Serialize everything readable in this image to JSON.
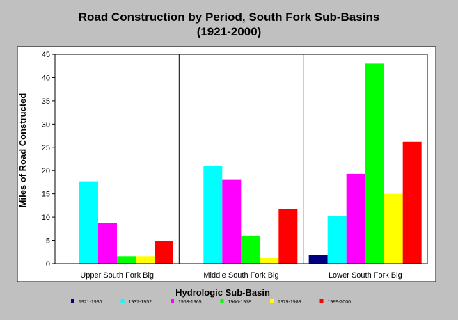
{
  "chart_data": {
    "type": "bar",
    "title_line1": "Road Construction by Period, South Fork Sub-Basins",
    "title_line2": "(1921-2000)",
    "xlabel": "Hydrologic Sub-Basin",
    "ylabel": "Miles of Road Constructed",
    "ylim": [
      0,
      45
    ],
    "yticks": [
      0,
      5,
      10,
      15,
      20,
      25,
      30,
      35,
      40,
      45
    ],
    "grid": false,
    "legend_position": "bottom",
    "categories": [
      "Upper South Fork Big",
      "Middle South Fork Big",
      "Lower South Fork Big"
    ],
    "series": [
      {
        "name": "1921-1936",
        "color": "#000080",
        "values": [
          0,
          0,
          1.8
        ]
      },
      {
        "name": "1937-1952",
        "color": "#00ffff",
        "values": [
          17.7,
          21.0,
          10.3
        ]
      },
      {
        "name": "1953-1965",
        "color": "#ff00ff",
        "values": [
          8.8,
          18.0,
          19.3
        ]
      },
      {
        "name": "1966-1978",
        "color": "#00ff00",
        "values": [
          1.6,
          6.0,
          43.0
        ]
      },
      {
        "name": "1979-1988",
        "color": "#ffff00",
        "values": [
          1.6,
          1.2,
          15.0
        ]
      },
      {
        "name": "1989-2000",
        "color": "#ff0000",
        "values": [
          4.8,
          11.8,
          26.2
        ]
      }
    ]
  }
}
